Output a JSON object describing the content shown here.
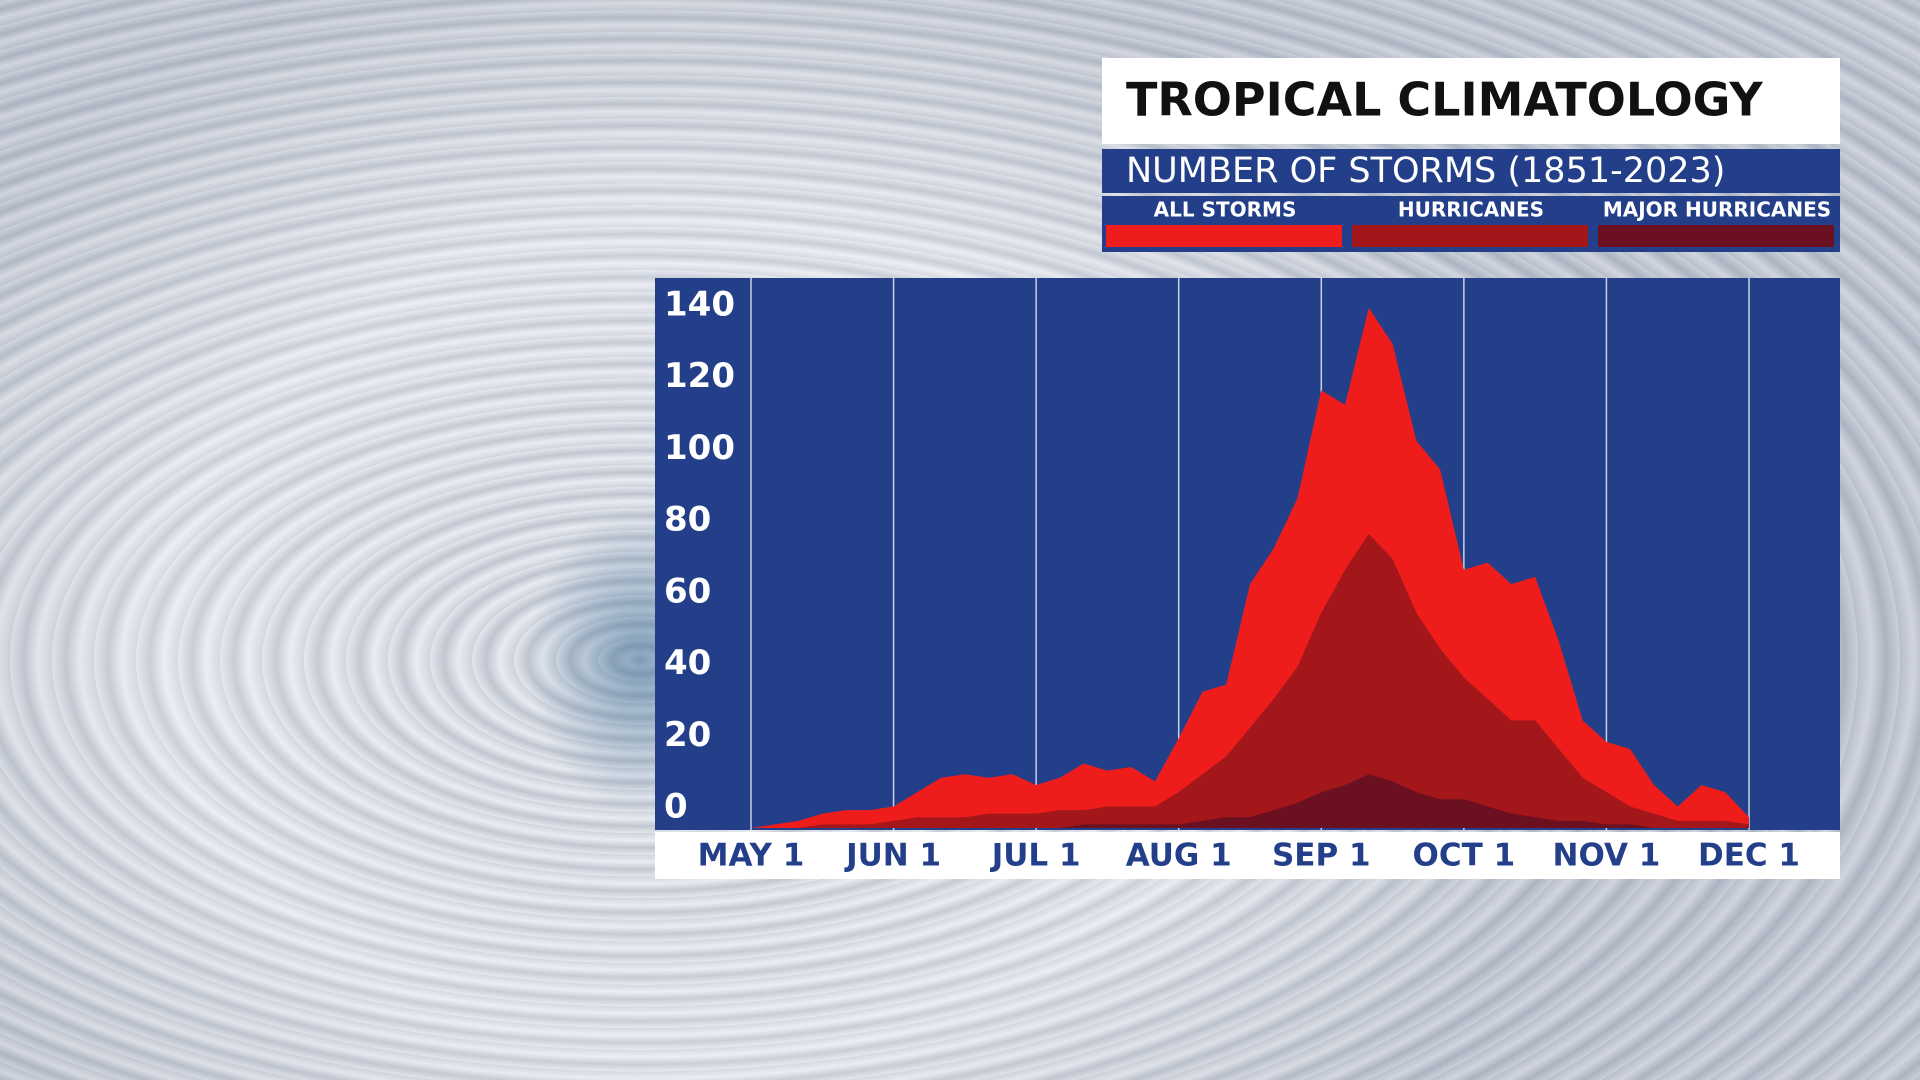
{
  "chart_data": {
    "type": "area",
    "title": "TROPICAL CLIMATOLOGY",
    "subtitle": "NUMBER OF STORMS (1851-2023)",
    "categories": [
      "MAY 1",
      null,
      null,
      null,
      null,
      null,
      "JUN 1",
      null,
      null,
      null,
      null,
      null,
      "JUL 1",
      null,
      null,
      null,
      null,
      null,
      "AUG 1",
      null,
      null,
      null,
      null,
      null,
      "SEP 1",
      null,
      null,
      null,
      null,
      null,
      "OCT 1",
      null,
      null,
      null,
      null,
      null,
      "NOV 1",
      null,
      null,
      null,
      null,
      null,
      "DEC 1"
    ],
    "series": [
      {
        "name": "ALL STORMS",
        "color": "#ef1c1c",
        "values": [
          0,
          1,
          2,
          4,
          5,
          5,
          6,
          10,
          14,
          15,
          14,
          15,
          12,
          14,
          18,
          16,
          17,
          13,
          25,
          38,
          40,
          68,
          78,
          92,
          122,
          118,
          145,
          135,
          108,
          100,
          72,
          74,
          68,
          70,
          52,
          30,
          24,
          22,
          12,
          6,
          12,
          10,
          3
        ]
      },
      {
        "name": "HURRICANES",
        "color": "#a3171b",
        "values": [
          0,
          0,
          0,
          1,
          1,
          1,
          2,
          3,
          3,
          3,
          4,
          4,
          4,
          5,
          5,
          6,
          6,
          6,
          10,
          15,
          20,
          28,
          36,
          45,
          60,
          72,
          82,
          75,
          60,
          50,
          42,
          36,
          30,
          30,
          22,
          14,
          10,
          6,
          4,
          2,
          2,
          2,
          1
        ]
      },
      {
        "name": "MAJOR HURRICANES",
        "color": "#6a1020",
        "values": [
          0,
          0,
          0,
          0,
          0,
          0,
          0,
          0,
          0,
          0,
          0,
          0,
          0,
          0,
          1,
          1,
          1,
          1,
          1,
          2,
          3,
          3,
          5,
          7,
          10,
          12,
          15,
          13,
          10,
          8,
          8,
          6,
          4,
          3,
          2,
          2,
          1,
          1,
          0,
          0,
          0,
          0,
          0
        ]
      }
    ],
    "ylim": [
      0,
      150
    ],
    "yticks": [
      0,
      20,
      40,
      60,
      80,
      100,
      120,
      140
    ],
    "grid": true
  }
}
